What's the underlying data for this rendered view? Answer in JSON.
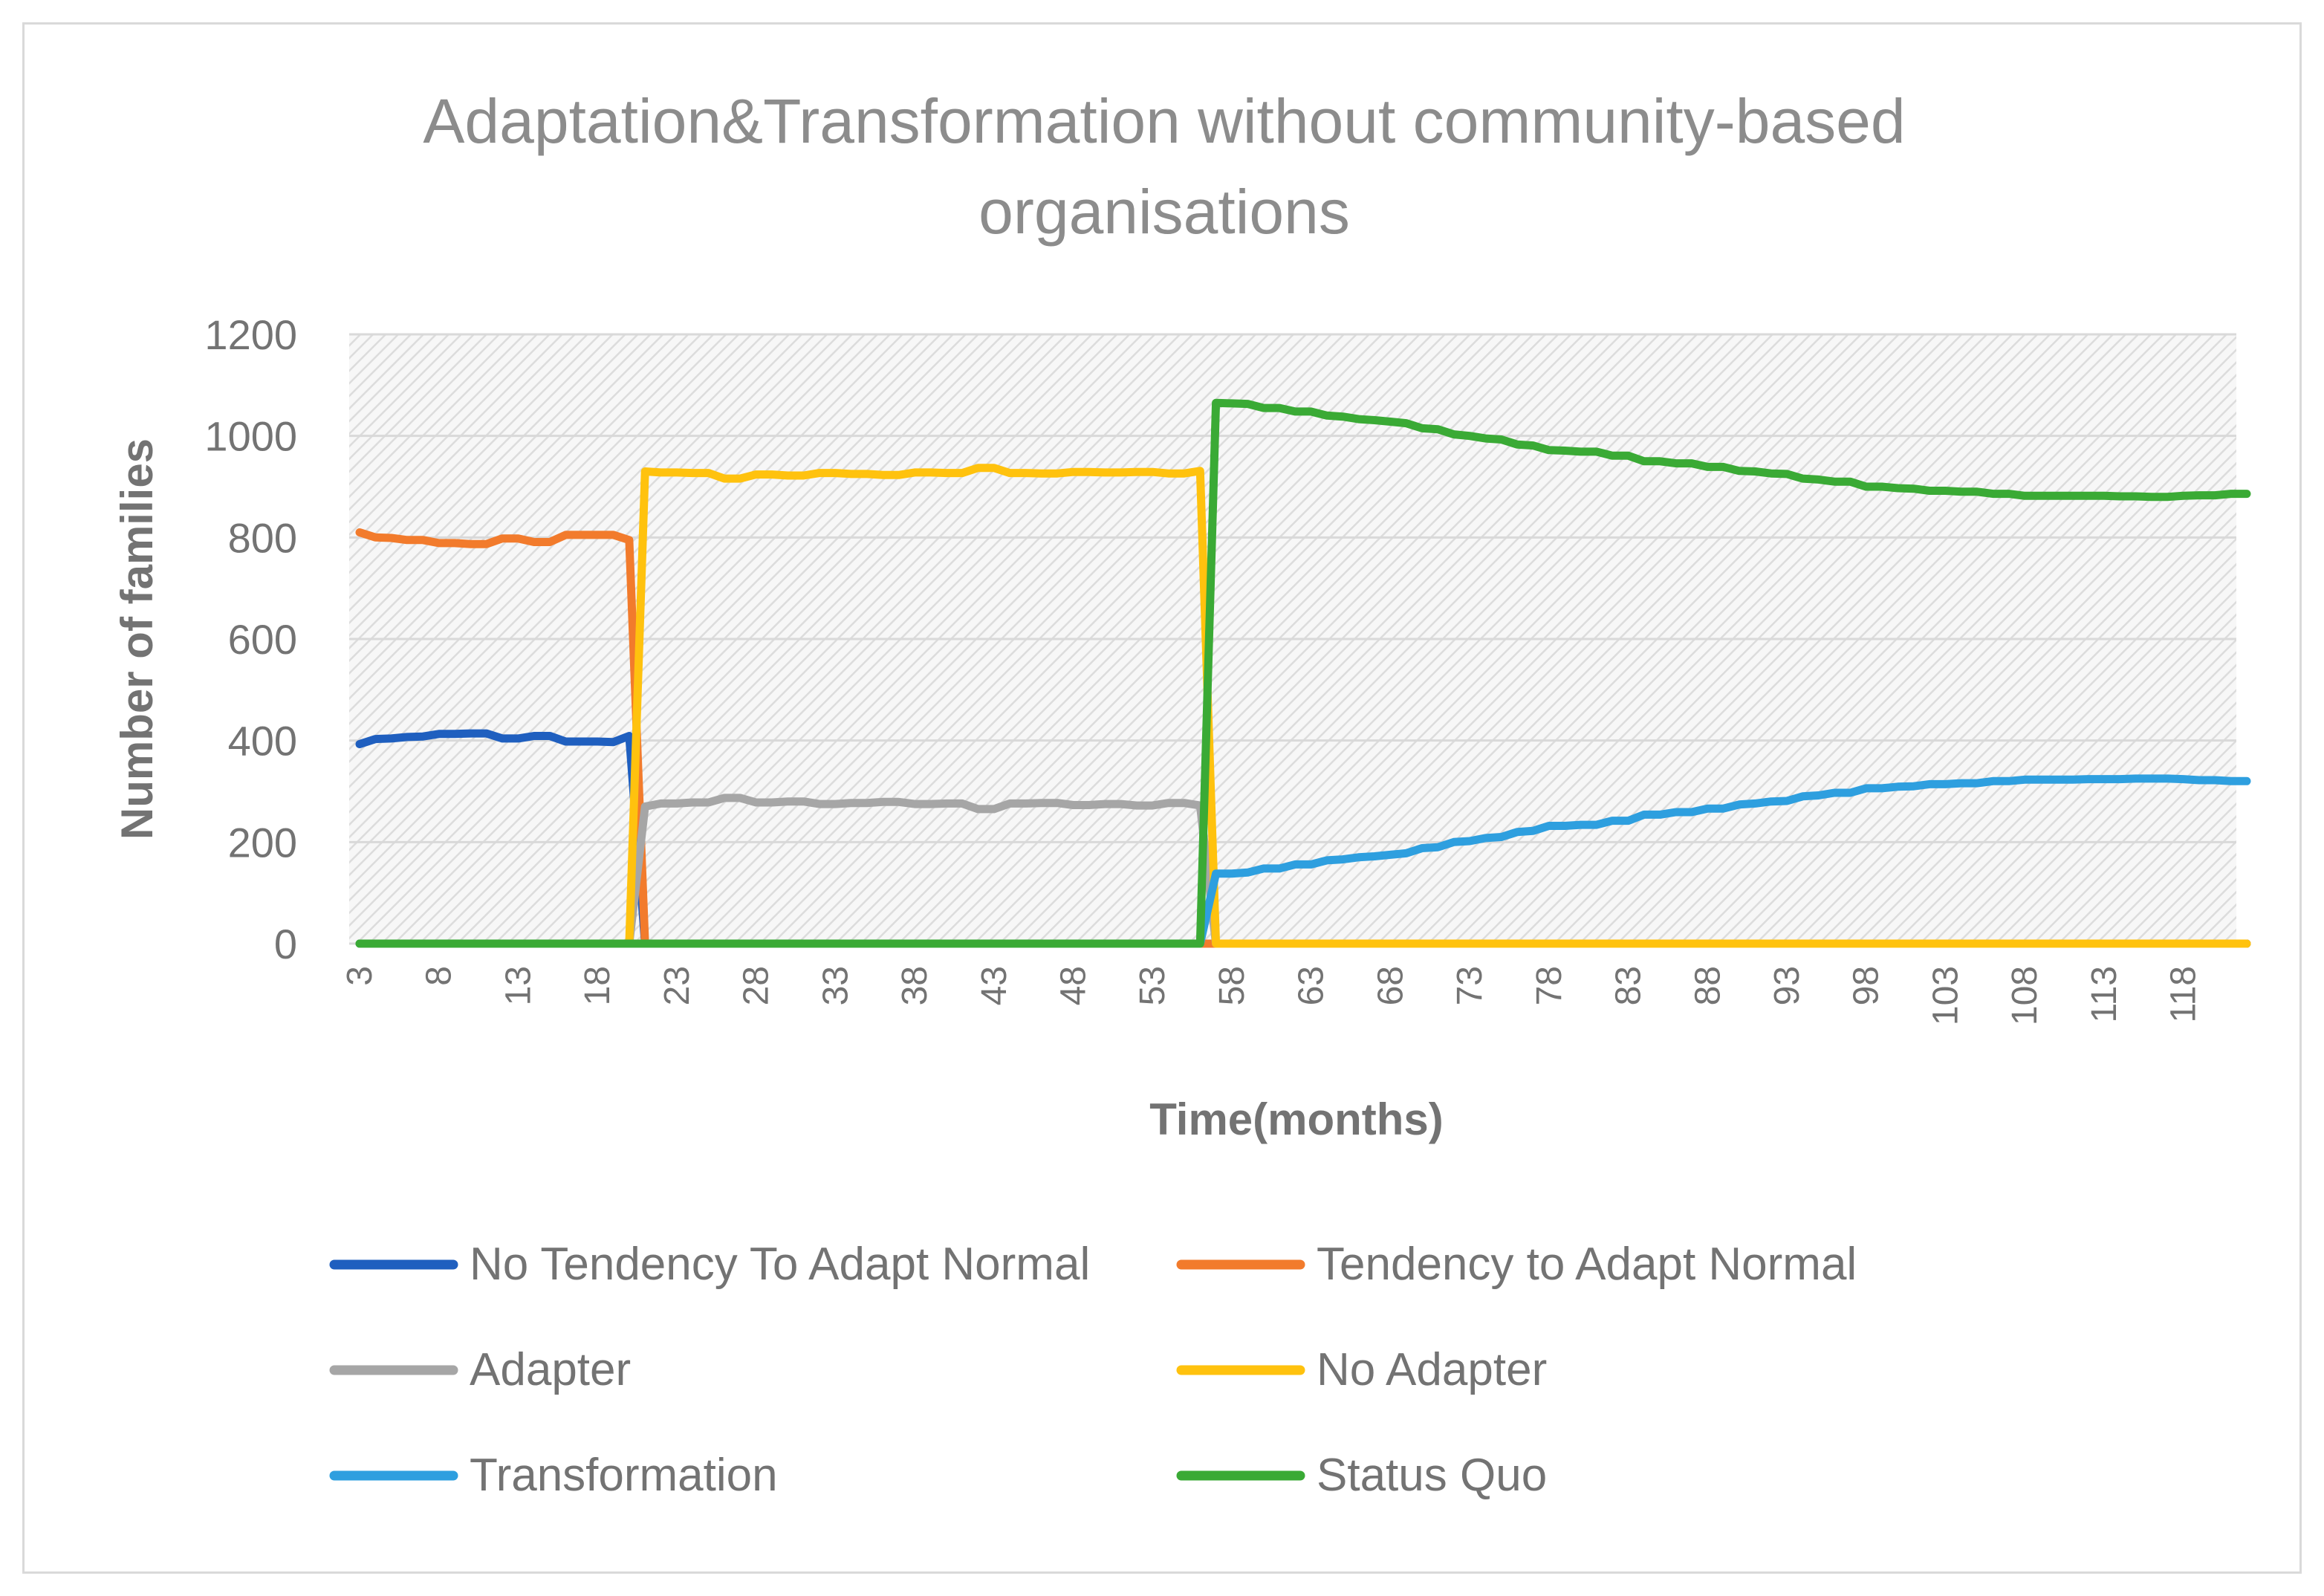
{
  "chart_data": {
    "type": "line",
    "title_lines": [
      "Adaptation&Transformation without community-based",
      "organisations"
    ],
    "xlabel": "Time(months)",
    "ylabel": "Number of families",
    "ylim": [
      0,
      1200
    ],
    "yticks": [
      "0",
      "200",
      "400",
      "600",
      "800",
      "1000",
      "1200"
    ],
    "xlim": [
      3,
      122
    ],
    "xticks": [
      3,
      8,
      13,
      18,
      23,
      28,
      33,
      38,
      43,
      48,
      53,
      58,
      63,
      68,
      73,
      78,
      83,
      88,
      93,
      98,
      103,
      108,
      113,
      118
    ],
    "grid": true,
    "legend_position": "bottom",
    "series": [
      {
        "name": "No Tendency To Adapt Normal",
        "color": "#1f5fbf",
        "points": [
          [
            3,
            393
          ],
          [
            4,
            403
          ],
          [
            5,
            404
          ],
          [
            6,
            407
          ],
          [
            7,
            408
          ],
          [
            8,
            413
          ],
          [
            9,
            413
          ],
          [
            10,
            414
          ],
          [
            11,
            414
          ],
          [
            12,
            404
          ],
          [
            13,
            404
          ],
          [
            14,
            409
          ],
          [
            15,
            409
          ],
          [
            16,
            398
          ],
          [
            17,
            398
          ],
          [
            18,
            398
          ],
          [
            19,
            397
          ],
          [
            20,
            409
          ],
          [
            21,
            0
          ],
          [
            122,
            0
          ]
        ]
      },
      {
        "name": "Tendency to Adapt Normal",
        "color": "#f27b2c",
        "points": [
          [
            3,
            810
          ],
          [
            4,
            800
          ],
          [
            5,
            799
          ],
          [
            6,
            795
          ],
          [
            7,
            795
          ],
          [
            8,
            789
          ],
          [
            9,
            789
          ],
          [
            10,
            787
          ],
          [
            11,
            787
          ],
          [
            12,
            798
          ],
          [
            13,
            798
          ],
          [
            14,
            791
          ],
          [
            15,
            791
          ],
          [
            16,
            805
          ],
          [
            17,
            805
          ],
          [
            18,
            805
          ],
          [
            19,
            805
          ],
          [
            20,
            795
          ],
          [
            21,
            0
          ],
          [
            122,
            0
          ]
        ]
      },
      {
        "name": "Adapter",
        "color": "#a6a6a6",
        "points": [
          [
            3,
            0
          ],
          [
            20,
            0
          ],
          [
            21,
            270
          ],
          [
            22,
            276
          ],
          [
            23,
            276
          ],
          [
            24,
            278
          ],
          [
            25,
            278
          ],
          [
            26,
            287
          ],
          [
            27,
            287
          ],
          [
            28,
            278
          ],
          [
            29,
            278
          ],
          [
            30,
            280
          ],
          [
            31,
            280
          ],
          [
            32,
            275
          ],
          [
            33,
            275
          ],
          [
            34,
            277
          ],
          [
            35,
            277
          ],
          [
            36,
            279
          ],
          [
            37,
            279
          ],
          [
            38,
            275
          ],
          [
            39,
            275
          ],
          [
            40,
            276
          ],
          [
            41,
            276
          ],
          [
            42,
            265
          ],
          [
            43,
            265
          ],
          [
            44,
            276
          ],
          [
            45,
            276
          ],
          [
            46,
            277
          ],
          [
            47,
            277
          ],
          [
            48,
            273
          ],
          [
            49,
            273
          ],
          [
            50,
            275
          ],
          [
            51,
            275
          ],
          [
            52,
            272
          ],
          [
            53,
            272
          ],
          [
            54,
            277
          ],
          [
            55,
            277
          ],
          [
            56,
            272
          ],
          [
            57,
            0
          ],
          [
            122,
            0
          ]
        ]
      },
      {
        "name": "No Adapter",
        "color": "#ffc20e",
        "points": [
          [
            3,
            0
          ],
          [
            20,
            0
          ],
          [
            21,
            930
          ],
          [
            22,
            928
          ],
          [
            23,
            928
          ],
          [
            24,
            927
          ],
          [
            25,
            927
          ],
          [
            26,
            916
          ],
          [
            27,
            916
          ],
          [
            28,
            924
          ],
          [
            29,
            924
          ],
          [
            30,
            922
          ],
          [
            31,
            922
          ],
          [
            32,
            927
          ],
          [
            33,
            927
          ],
          [
            34,
            925
          ],
          [
            35,
            925
          ],
          [
            36,
            923
          ],
          [
            37,
            923
          ],
          [
            38,
            928
          ],
          [
            39,
            928
          ],
          [
            40,
            927
          ],
          [
            41,
            927
          ],
          [
            42,
            937
          ],
          [
            43,
            937
          ],
          [
            44,
            927
          ],
          [
            45,
            927
          ],
          [
            46,
            926
          ],
          [
            47,
            926
          ],
          [
            48,
            929
          ],
          [
            49,
            929
          ],
          [
            50,
            928
          ],
          [
            51,
            928
          ],
          [
            52,
            929
          ],
          [
            53,
            929
          ],
          [
            54,
            926
          ],
          [
            55,
            926
          ],
          [
            56,
            931
          ],
          [
            57,
            0
          ],
          [
            122,
            0
          ]
        ]
      },
      {
        "name": "Transformation",
        "color": "#2e9fdf",
        "points": [
          [
            3,
            0
          ],
          [
            56,
            0
          ],
          [
            57,
            138
          ],
          [
            58,
            138
          ],
          [
            59,
            140
          ],
          [
            60,
            148
          ],
          [
            61,
            148
          ],
          [
            62,
            156
          ],
          [
            63,
            156
          ],
          [
            64,
            164
          ],
          [
            65,
            166
          ],
          [
            66,
            170
          ],
          [
            67,
            172
          ],
          [
            68,
            175
          ],
          [
            69,
            178
          ],
          [
            70,
            188
          ],
          [
            71,
            190
          ],
          [
            72,
            200
          ],
          [
            73,
            202
          ],
          [
            74,
            208
          ],
          [
            75,
            210
          ],
          [
            76,
            220
          ],
          [
            77,
            222
          ],
          [
            78,
            232
          ],
          [
            79,
            232
          ],
          [
            80,
            234
          ],
          [
            81,
            234
          ],
          [
            82,
            242
          ],
          [
            83,
            242
          ],
          [
            84,
            254
          ],
          [
            85,
            254
          ],
          [
            86,
            259
          ],
          [
            87,
            259
          ],
          [
            88,
            266
          ],
          [
            89,
            266
          ],
          [
            90,
            274
          ],
          [
            91,
            276
          ],
          [
            92,
            280
          ],
          [
            93,
            281
          ],
          [
            94,
            290
          ],
          [
            95,
            292
          ],
          [
            96,
            297
          ],
          [
            97,
            297
          ],
          [
            98,
            306
          ],
          [
            99,
            306
          ],
          [
            100,
            309
          ],
          [
            101,
            310
          ],
          [
            102,
            314
          ],
          [
            103,
            314
          ],
          [
            104,
            316
          ],
          [
            105,
            316
          ],
          [
            106,
            320
          ],
          [
            107,
            320
          ],
          [
            108,
            323
          ],
          [
            109,
            323
          ],
          [
            110,
            323
          ],
          [
            111,
            323
          ],
          [
            112,
            324
          ],
          [
            113,
            324
          ],
          [
            114,
            324
          ],
          [
            115,
            325
          ],
          [
            116,
            325
          ],
          [
            117,
            325
          ],
          [
            118,
            324
          ],
          [
            119,
            322
          ],
          [
            120,
            322
          ],
          [
            121,
            320
          ],
          [
            122,
            320
          ]
        ]
      },
      {
        "name": "Status Quo",
        "color": "#3aaa35",
        "points": [
          [
            3,
            0
          ],
          [
            56,
            0
          ],
          [
            57,
            1065
          ],
          [
            58,
            1064
          ],
          [
            59,
            1063
          ],
          [
            60,
            1055
          ],
          [
            61,
            1055
          ],
          [
            62,
            1048
          ],
          [
            63,
            1048
          ],
          [
            64,
            1040
          ],
          [
            65,
            1038
          ],
          [
            66,
            1033
          ],
          [
            67,
            1031
          ],
          [
            68,
            1028
          ],
          [
            69,
            1025
          ],
          [
            70,
            1015
          ],
          [
            71,
            1013
          ],
          [
            72,
            1003
          ],
          [
            73,
            1000
          ],
          [
            74,
            995
          ],
          [
            75,
            993
          ],
          [
            76,
            983
          ],
          [
            77,
            981
          ],
          [
            78,
            972
          ],
          [
            79,
            971
          ],
          [
            80,
            969
          ],
          [
            81,
            969
          ],
          [
            82,
            961
          ],
          [
            83,
            961
          ],
          [
            84,
            950
          ],
          [
            85,
            950
          ],
          [
            86,
            946
          ],
          [
            87,
            946
          ],
          [
            88,
            939
          ],
          [
            89,
            939
          ],
          [
            90,
            931
          ],
          [
            91,
            930
          ],
          [
            92,
            926
          ],
          [
            93,
            925
          ],
          [
            94,
            916
          ],
          [
            95,
            914
          ],
          [
            96,
            910
          ],
          [
            97,
            910
          ],
          [
            98,
            900
          ],
          [
            99,
            900
          ],
          [
            100,
            897
          ],
          [
            101,
            896
          ],
          [
            102,
            892
          ],
          [
            103,
            892
          ],
          [
            104,
            890
          ],
          [
            105,
            890
          ],
          [
            106,
            886
          ],
          [
            107,
            886
          ],
          [
            108,
            882
          ],
          [
            109,
            882
          ],
          [
            110,
            882
          ],
          [
            111,
            882
          ],
          [
            112,
            882
          ],
          [
            113,
            882
          ],
          [
            114,
            881
          ],
          [
            115,
            881
          ],
          [
            116,
            880
          ],
          [
            117,
            880
          ],
          [
            118,
            882
          ],
          [
            119,
            883
          ],
          [
            120,
            883
          ],
          [
            121,
            886
          ],
          [
            122,
            886
          ]
        ]
      }
    ]
  }
}
